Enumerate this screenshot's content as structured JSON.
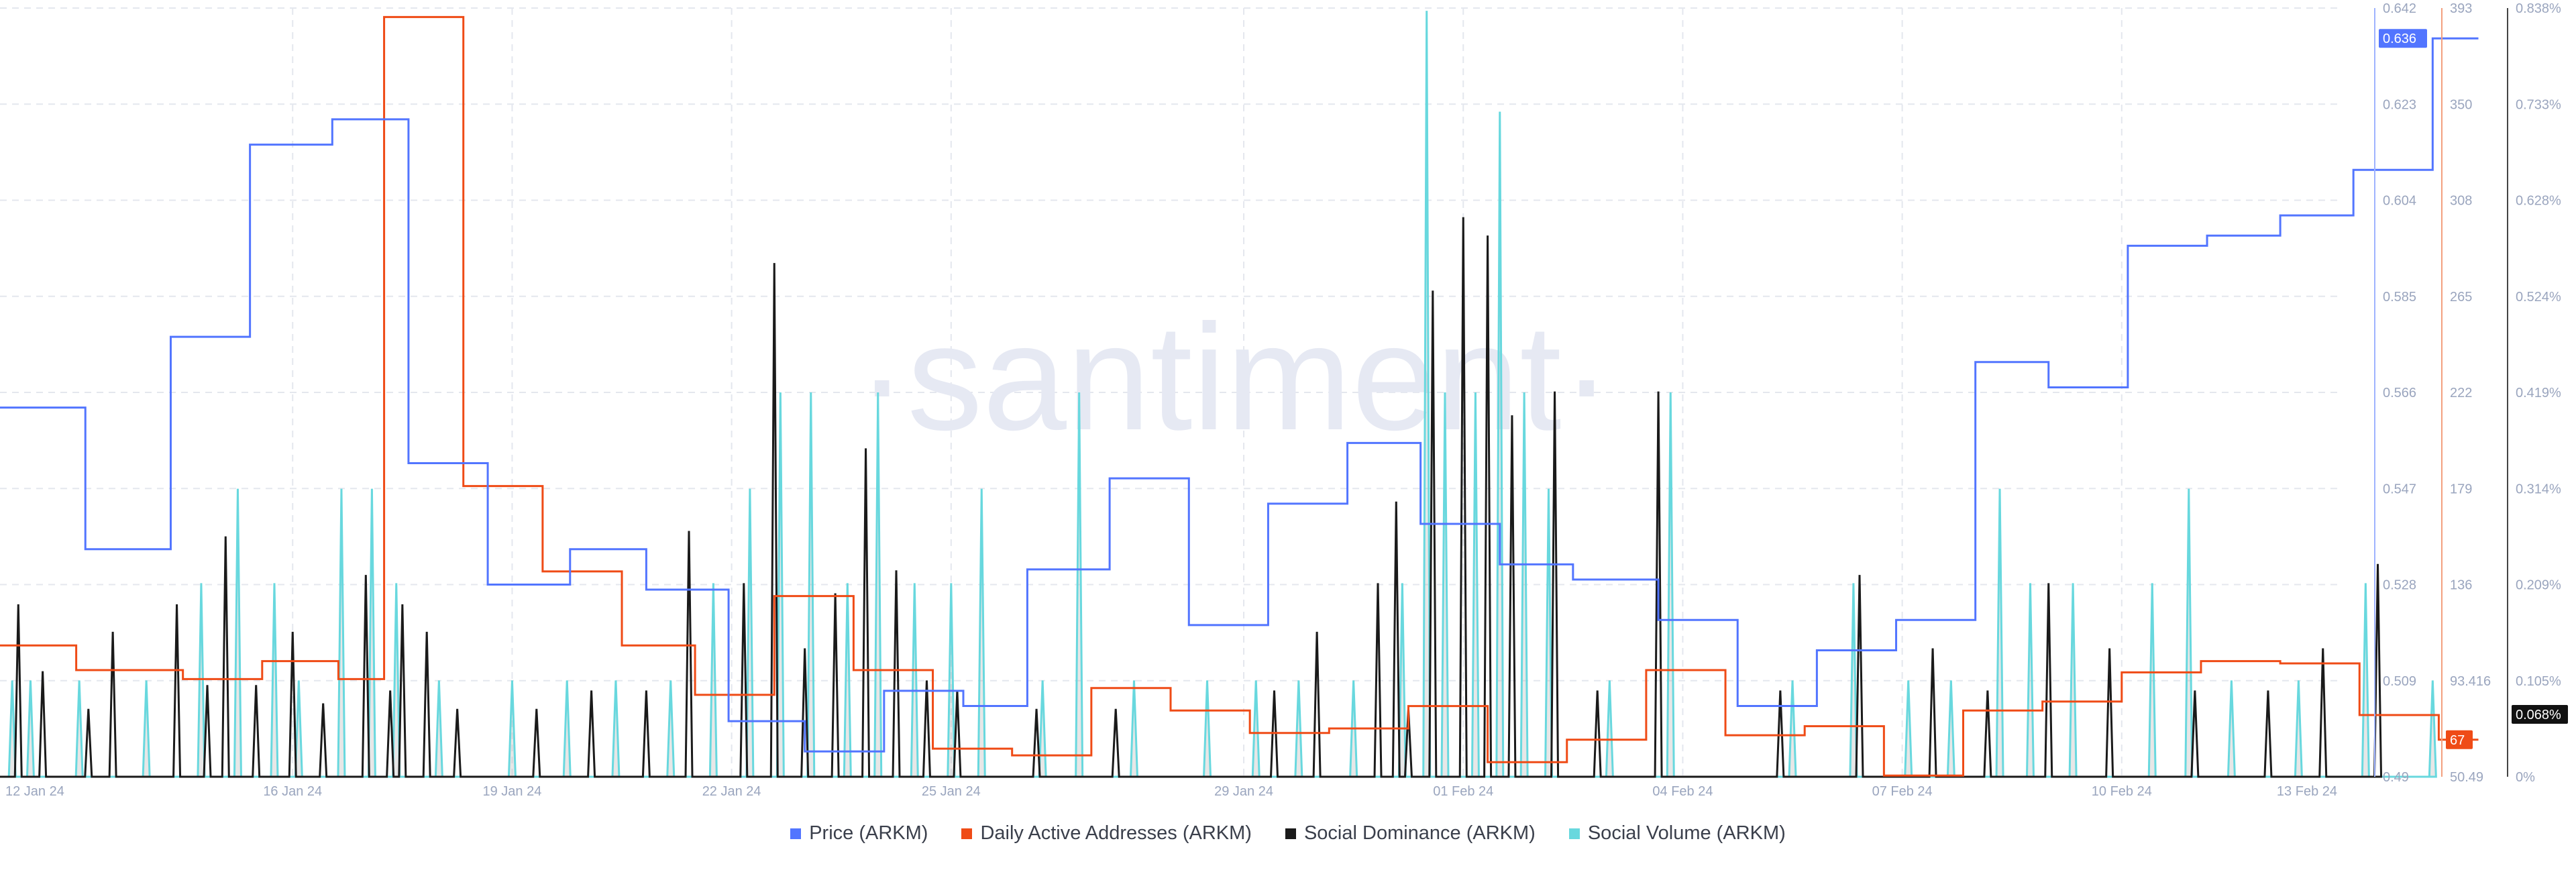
{
  "watermark": "·santiment·",
  "colors": {
    "price": "#5275ff",
    "daa": "#ef4b16",
    "dominance": "#1a1a1a",
    "volume": "#68d8de",
    "grid": "#e4e7ee",
    "tick": "#9aa5be"
  },
  "chart_data": {
    "type": "line",
    "title": "",
    "x_labels": [
      "12 Jan 24",
      "16 Jan 24",
      "19 Jan 24",
      "22 Jan 24",
      "25 Jan 24",
      "29 Jan 24",
      "01 Feb 24",
      "04 Feb 24",
      "07 Feb 24",
      "10 Feb 24",
      "13 Feb 24"
    ],
    "x_range": [
      "2024-01-12",
      "2024-02-13"
    ],
    "axes": {
      "price": {
        "range": [
          0.49,
          0.642
        ],
        "ticks": [
          "0.642",
          "0.623",
          "0.604",
          "0.585",
          "0.566",
          "0.547",
          "0.528",
          "0.509",
          "0.49"
        ],
        "current": "0.636"
      },
      "daa": {
        "range": [
          50.49,
          393
        ],
        "ticks": [
          "393",
          "350",
          "308",
          "265",
          "222",
          "179",
          "136",
          "93.416",
          "50.49"
        ],
        "current": "67"
      },
      "dominance": {
        "range": [
          0,
          0.838
        ],
        "ticks": [
          "0.838%",
          "0.733%",
          "0.628%",
          "0.524%",
          "0.419%",
          "0.314%",
          "0.209%",
          "0.105%",
          "0%"
        ],
        "current": "0.068%"
      }
    },
    "series": [
      {
        "name": "Price (ARKM)",
        "key": "price",
        "type": "step",
        "points": [
          [
            "2024-01-12T00:00",
            0.563
          ],
          [
            "2024-01-13T04:00",
            0.535
          ],
          [
            "2024-01-14T08:00",
            0.577
          ],
          [
            "2024-01-15T10:00",
            0.615
          ],
          [
            "2024-01-16T13:00",
            0.62
          ],
          [
            "2024-01-17T14:00",
            0.552
          ],
          [
            "2024-01-18T16:00",
            0.528
          ],
          [
            "2024-01-19T19:00",
            0.535
          ],
          [
            "2024-01-20T20:00",
            0.527
          ],
          [
            "2024-01-21T23:00",
            0.501
          ],
          [
            "2024-01-23T00:00",
            0.495
          ],
          [
            "2024-01-24T02:00",
            0.507
          ],
          [
            "2024-01-25T04:00",
            0.504
          ],
          [
            "2024-01-26T01:00",
            0.531
          ],
          [
            "2024-01-27T04:00",
            0.549
          ],
          [
            "2024-01-28T06:00",
            0.52
          ],
          [
            "2024-01-29T08:00",
            0.544
          ],
          [
            "2024-01-30T10:00",
            0.556
          ],
          [
            "2024-01-31T10:00",
            0.54
          ],
          [
            "2024-02-01T12:00",
            0.532
          ],
          [
            "2024-02-02T12:00",
            0.529
          ],
          [
            "2024-02-03T16:00",
            0.521
          ],
          [
            "2024-02-04T18:00",
            0.504
          ],
          [
            "2024-02-05T20:00",
            0.515
          ],
          [
            "2024-02-06T22:00",
            0.521
          ],
          [
            "2024-02-08T00:00",
            0.572
          ],
          [
            "2024-02-09T00:00",
            0.567
          ],
          [
            "2024-02-10T02:00",
            0.595
          ],
          [
            "2024-02-11T04:00",
            0.597
          ],
          [
            "2024-02-12T04:00",
            0.601
          ],
          [
            "2024-02-13T04:00",
            0.61
          ],
          [
            "2024-02-14T06:00",
            0.636
          ],
          [
            "2024-02-14T21:00",
            0.636
          ]
        ]
      },
      {
        "name": "Daily Active Addresses (ARKM)",
        "key": "daa",
        "type": "step",
        "points": [
          [
            "2024-01-12T00:00",
            109
          ],
          [
            "2024-01-13T01:00",
            98
          ],
          [
            "2024-01-14T12:00",
            94
          ],
          [
            "2024-01-15T14:00",
            102
          ],
          [
            "2024-01-16T15:00",
            94
          ],
          [
            "2024-01-17T06:00",
            389
          ],
          [
            "2024-01-18T08:00",
            180
          ],
          [
            "2024-01-19T10:00",
            142
          ],
          [
            "2024-01-20T12:00",
            109
          ],
          [
            "2024-01-21T12:00",
            87
          ],
          [
            "2024-01-22T14:00",
            131
          ],
          [
            "2024-01-23T16:00",
            98
          ],
          [
            "2024-01-24T18:00",
            63
          ],
          [
            "2024-01-25T20:00",
            60
          ],
          [
            "2024-01-26T22:00",
            90
          ],
          [
            "2024-01-28T00:00",
            80
          ],
          [
            "2024-01-29T02:00",
            70
          ],
          [
            "2024-01-30T04:00",
            72
          ],
          [
            "2024-01-31T06:00",
            82
          ],
          [
            "2024-02-01T08:00",
            57
          ],
          [
            "2024-02-02T10:00",
            67
          ],
          [
            "2024-02-03T12:00",
            98
          ],
          [
            "2024-02-04T14:00",
            69
          ],
          [
            "2024-02-05T16:00",
            73
          ],
          [
            "2024-02-06T18:00",
            51
          ],
          [
            "2024-02-07T20:00",
            80
          ],
          [
            "2024-02-08T22:00",
            84
          ],
          [
            "2024-02-10T00:00",
            97
          ],
          [
            "2024-02-11T02:00",
            102
          ],
          [
            "2024-02-12T04:00",
            101
          ],
          [
            "2024-02-13T06:00",
            78
          ],
          [
            "2024-02-14T08:00",
            67
          ],
          [
            "2024-02-14T21:00",
            67
          ]
        ]
      },
      {
        "name": "Social Dominance (ARKM)",
        "key": "dominance",
        "type": "spikes",
        "points": [
          [
            "2024-01-12T06:00",
            0.188
          ],
          [
            "2024-01-12T14:00",
            0.115
          ],
          [
            "2024-01-13T05:00",
            0.074
          ],
          [
            "2024-01-13T13:00",
            0.158
          ],
          [
            "2024-01-14T10:00",
            0.188
          ],
          [
            "2024-01-14T20:00",
            0.1
          ],
          [
            "2024-01-15T02:00",
            0.262
          ],
          [
            "2024-01-15T12:00",
            0.1
          ],
          [
            "2024-01-16T00:00",
            0.158
          ],
          [
            "2024-01-16T10:00",
            0.08
          ],
          [
            "2024-01-17T00:00",
            0.22
          ],
          [
            "2024-01-17T08:00",
            0.094
          ],
          [
            "2024-01-17T12:00",
            0.188
          ],
          [
            "2024-01-17T20:00",
            0.158
          ],
          [
            "2024-01-18T06:00",
            0.074
          ],
          [
            "2024-01-19T08:00",
            0.074
          ],
          [
            "2024-01-20T02:00",
            0.094
          ],
          [
            "2024-01-20T20:00",
            0.094
          ],
          [
            "2024-01-21T10:00",
            0.268
          ],
          [
            "2024-01-22T04:00",
            0.211
          ],
          [
            "2024-01-22T14:00",
            0.56
          ],
          [
            "2024-01-23T00:00",
            0.14
          ],
          [
            "2024-01-23T10:00",
            0.2
          ],
          [
            "2024-01-23T20:00",
            0.358
          ],
          [
            "2024-01-24T06:00",
            0.225
          ],
          [
            "2024-01-24T16:00",
            0.105
          ],
          [
            "2024-01-25T02:00",
            0.094
          ],
          [
            "2024-01-26T04:00",
            0.074
          ],
          [
            "2024-01-27T06:00",
            0.074
          ],
          [
            "2024-01-29T10:00",
            0.094
          ],
          [
            "2024-01-30T00:00",
            0.158
          ],
          [
            "2024-01-30T20:00",
            0.211
          ],
          [
            "2024-01-31T02:00",
            0.3
          ],
          [
            "2024-01-31T06:00",
            0.074
          ],
          [
            "2024-01-31T14:00",
            0.53
          ],
          [
            "2024-02-01T00:00",
            0.61
          ],
          [
            "2024-02-01T08:00",
            0.59
          ],
          [
            "2024-02-01T16:00",
            0.394
          ],
          [
            "2024-02-02T06:00",
            0.42
          ],
          [
            "2024-02-02T20:00",
            0.094
          ],
          [
            "2024-02-03T16:00",
            0.42
          ],
          [
            "2024-02-05T08:00",
            0.094
          ],
          [
            "2024-02-06T10:00",
            0.22
          ],
          [
            "2024-02-07T10:00",
            0.14
          ],
          [
            "2024-02-08T04:00",
            0.094
          ],
          [
            "2024-02-09T00:00",
            0.211
          ],
          [
            "2024-02-09T20:00",
            0.14
          ],
          [
            "2024-02-11T00:00",
            0.094
          ],
          [
            "2024-02-12T00:00",
            0.094
          ],
          [
            "2024-02-12T18:00",
            0.14
          ],
          [
            "2024-02-13T12:00",
            0.232
          ]
        ]
      },
      {
        "name": "Social Volume (ARKM)",
        "key": "volume",
        "type": "spikes",
        "points": [
          [
            "2024-01-12T04:00",
            0.105
          ],
          [
            "2024-01-12T10:00",
            0.105
          ],
          [
            "2024-01-13T02:00",
            0.105
          ],
          [
            "2024-01-14T00:00",
            0.105
          ],
          [
            "2024-01-14T18:00",
            0.211
          ],
          [
            "2024-01-15T06:00",
            0.314
          ],
          [
            "2024-01-15T18:00",
            0.211
          ],
          [
            "2024-01-16T02:00",
            0.105
          ],
          [
            "2024-01-16T16:00",
            0.314
          ],
          [
            "2024-01-17T02:00",
            0.314
          ],
          [
            "2024-01-17T10:00",
            0.211
          ],
          [
            "2024-01-18T00:00",
            0.105
          ],
          [
            "2024-01-19T00:00",
            0.105
          ],
          [
            "2024-01-19T18:00",
            0.105
          ],
          [
            "2024-01-20T10:00",
            0.105
          ],
          [
            "2024-01-21T04:00",
            0.105
          ],
          [
            "2024-01-21T18:00",
            0.211
          ],
          [
            "2024-01-22T06:00",
            0.314
          ],
          [
            "2024-01-22T16:00",
            0.419
          ],
          [
            "2024-01-23T02:00",
            0.419
          ],
          [
            "2024-01-23T14:00",
            0.211
          ],
          [
            "2024-01-24T00:00",
            0.419
          ],
          [
            "2024-01-24T12:00",
            0.211
          ],
          [
            "2024-01-25T00:00",
            0.211
          ],
          [
            "2024-01-25T10:00",
            0.314
          ],
          [
            "2024-01-26T06:00",
            0.105
          ],
          [
            "2024-01-26T18:00",
            0.419
          ],
          [
            "2024-01-27T12:00",
            0.105
          ],
          [
            "2024-01-28T12:00",
            0.105
          ],
          [
            "2024-01-29T04:00",
            0.105
          ],
          [
            "2024-01-29T18:00",
            0.105
          ],
          [
            "2024-01-30T12:00",
            0.105
          ],
          [
            "2024-01-31T04:00",
            0.211
          ],
          [
            "2024-01-31T12:00",
            0.835
          ],
          [
            "2024-01-31T18:00",
            0.419
          ],
          [
            "2024-02-01T04:00",
            0.419
          ],
          [
            "2024-02-01T12:00",
            0.725
          ],
          [
            "2024-02-01T20:00",
            0.419
          ],
          [
            "2024-02-02T04:00",
            0.314
          ],
          [
            "2024-02-03T00:00",
            0.105
          ],
          [
            "2024-02-03T20:00",
            0.419
          ],
          [
            "2024-02-05T12:00",
            0.105
          ],
          [
            "2024-02-06T08:00",
            0.211
          ],
          [
            "2024-02-07T02:00",
            0.105
          ],
          [
            "2024-02-07T16:00",
            0.105
          ],
          [
            "2024-02-08T08:00",
            0.314
          ],
          [
            "2024-02-08T18:00",
            0.211
          ],
          [
            "2024-02-09T08:00",
            0.211
          ],
          [
            "2024-02-10T10:00",
            0.211
          ],
          [
            "2024-02-10T22:00",
            0.314
          ],
          [
            "2024-02-11T12:00",
            0.105
          ],
          [
            "2024-02-12T10:00",
            0.105
          ],
          [
            "2024-02-13T08:00",
            0.211
          ],
          [
            "2024-02-14T06:00",
            0.105
          ]
        ]
      }
    ],
    "grid": true,
    "legend_position": "bottom-center"
  }
}
